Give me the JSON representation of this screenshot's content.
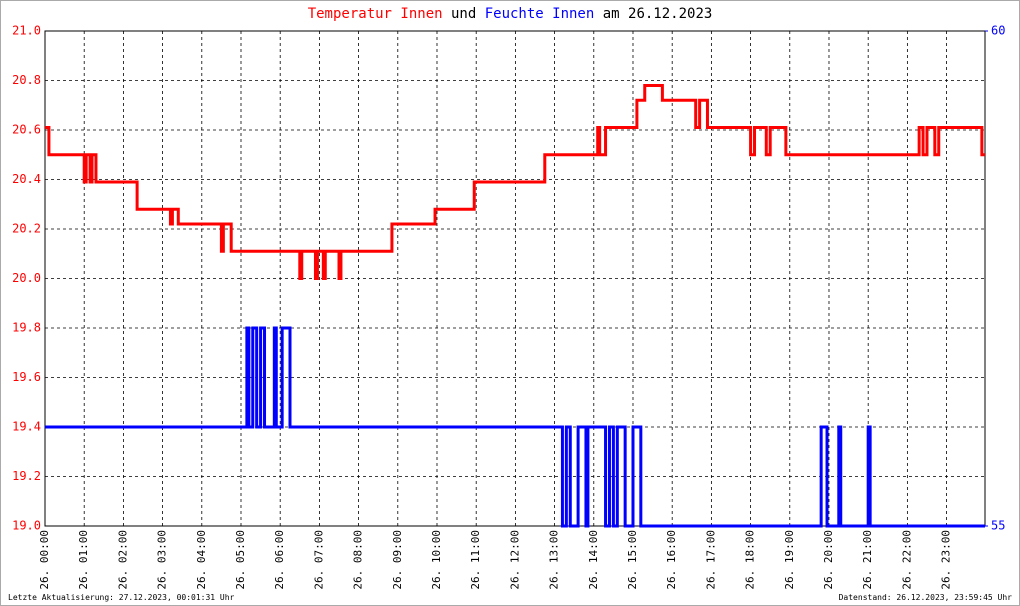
{
  "chart_data": {
    "type": "line",
    "title_joiner": "und",
    "title_date": "am 26.12.2023",
    "footer_left": "Letzte Aktualisierung: 27.12.2023, 00:01:31 Uhr",
    "footer_right": "Datenstand: 26.12.2023, 23:59:45 Uhr",
    "grid": true,
    "xlim": [
      0,
      23.98
    ],
    "xticks": [
      {
        "value": 0,
        "label": "26. 00:00"
      },
      {
        "value": 1,
        "label": "26. 01:00"
      },
      {
        "value": 2,
        "label": "26. 02:00"
      },
      {
        "value": 3,
        "label": "26. 03:00"
      },
      {
        "value": 4,
        "label": "26. 04:00"
      },
      {
        "value": 5,
        "label": "26. 05:00"
      },
      {
        "value": 6,
        "label": "26. 06:00"
      },
      {
        "value": 7,
        "label": "26. 07:00"
      },
      {
        "value": 8,
        "label": "26. 08:00"
      },
      {
        "value": 9,
        "label": "26. 09:00"
      },
      {
        "value": 10,
        "label": "26. 10:00"
      },
      {
        "value": 11,
        "label": "26. 11:00"
      },
      {
        "value": 12,
        "label": "26. 12:00"
      },
      {
        "value": 13,
        "label": "26. 13:00"
      },
      {
        "value": 14,
        "label": "26. 14:00"
      },
      {
        "value": 15,
        "label": "26. 15:00"
      },
      {
        "value": 16,
        "label": "26. 16:00"
      },
      {
        "value": 17,
        "label": "26. 17:00"
      },
      {
        "value": 18,
        "label": "26. 18:00"
      },
      {
        "value": 19,
        "label": "26. 19:00"
      },
      {
        "value": 20,
        "label": "26. 20:00"
      },
      {
        "value": 21,
        "label": "26. 21:00"
      },
      {
        "value": 22,
        "label": "26. 22:00"
      },
      {
        "value": 23,
        "label": "26. 23:00"
      }
    ],
    "ylim": [
      19.0,
      21.0
    ],
    "yticks": [
      {
        "value": 19.0,
        "label": "19.0"
      },
      19.2,
      19.4,
      19.6,
      19.8,
      {
        "value": 20.0,
        "label": "20.0"
      },
      20.2,
      20.4,
      20.6,
      20.8,
      {
        "value": 21.0,
        "label": "21.0"
      }
    ],
    "y_color": "#ff0000",
    "y2lim": [
      55,
      60
    ],
    "y2ticks": [
      55,
      60
    ],
    "y2_color": "#0000ff",
    "series": [
      {
        "name": "Temperatur Innen",
        "color": "#ff0000",
        "axis": "y",
        "x": [
          0,
          0.1,
          0.1,
          1.0,
          1.0,
          1.05,
          1.05,
          1.15,
          1.15,
          1.2,
          1.2,
          1.3,
          1.3,
          2.35,
          2.35,
          3.2,
          3.2,
          3.25,
          3.25,
          3.4,
          3.4,
          4.5,
          4.5,
          4.55,
          4.55,
          4.75,
          4.75,
          6.5,
          6.5,
          6.55,
          6.55,
          6.9,
          6.9,
          6.95,
          6.95,
          7.1,
          7.1,
          7.15,
          7.15,
          7.5,
          7.5,
          7.55,
          7.55,
          8.85,
          8.85,
          9.95,
          9.95,
          10.95,
          10.95,
          12.75,
          12.75,
          14.1,
          14.1,
          14.15,
          14.15,
          14.3,
          14.3,
          15.1,
          15.1,
          15.3,
          15.3,
          15.75,
          15.75,
          16.6,
          16.6,
          16.7,
          16.7,
          16.9,
          16.9,
          18.0,
          18.0,
          18.1,
          18.1,
          18.4,
          18.4,
          18.5,
          18.5,
          18.9,
          18.9,
          22.3,
          22.3,
          22.4,
          22.4,
          22.5,
          22.5,
          22.7,
          22.7,
          22.8,
          22.8,
          23.9,
          23.9,
          23.98
        ],
        "values": [
          20.61,
          20.61,
          20.5,
          20.5,
          20.39,
          20.39,
          20.5,
          20.5,
          20.39,
          20.39,
          20.5,
          20.5,
          20.39,
          20.39,
          20.28,
          20.28,
          20.22,
          20.22,
          20.28,
          20.28,
          20.22,
          20.22,
          20.11,
          20.11,
          20.22,
          20.22,
          20.11,
          20.11,
          20.0,
          20.0,
          20.11,
          20.11,
          20.0,
          20.0,
          20.11,
          20.11,
          20.0,
          20.0,
          20.11,
          20.11,
          20.0,
          20.0,
          20.11,
          20.11,
          20.22,
          20.22,
          20.28,
          20.28,
          20.39,
          20.39,
          20.5,
          20.5,
          20.61,
          20.61,
          20.5,
          20.5,
          20.61,
          20.61,
          20.72,
          20.72,
          20.78,
          20.78,
          20.72,
          20.72,
          20.61,
          20.61,
          20.72,
          20.72,
          20.61,
          20.61,
          20.5,
          20.5,
          20.61,
          20.61,
          20.5,
          20.5,
          20.61,
          20.61,
          20.5,
          20.5,
          20.61,
          20.61,
          20.5,
          20.5,
          20.61,
          20.61,
          20.5,
          20.5,
          20.61,
          20.61,
          20.5,
          20.5
        ]
      },
      {
        "name": "Feuchte Innen",
        "color": "#0000ff",
        "axis": "y2",
        "x": [
          0,
          5.15,
          5.15,
          5.2,
          5.2,
          5.3,
          5.3,
          5.4,
          5.4,
          5.5,
          5.5,
          5.6,
          5.6,
          5.85,
          5.85,
          5.9,
          5.9,
          6.05,
          6.05,
          6.25,
          6.25,
          13.2,
          13.2,
          13.3,
          13.3,
          13.4,
          13.4,
          13.6,
          13.6,
          13.8,
          13.8,
          13.85,
          13.85,
          14.3,
          14.3,
          14.4,
          14.4,
          14.5,
          14.5,
          14.6,
          14.6,
          14.8,
          14.8,
          15.0,
          15.0,
          15.2,
          15.2,
          19.8,
          19.8,
          19.95,
          19.95,
          20.25,
          20.25,
          20.3,
          20.3,
          21.0,
          21.0,
          21.05,
          21.05,
          23.98
        ],
        "values": [
          56,
          56,
          57,
          57,
          56,
          56,
          57,
          57,
          56,
          56,
          57,
          57,
          56,
          56,
          57,
          57,
          56,
          56,
          57,
          57,
          56,
          56,
          55,
          55,
          56,
          56,
          55,
          55,
          56,
          56,
          55,
          55,
          56,
          56,
          55,
          55,
          56,
          56,
          55,
          55,
          56,
          56,
          55,
          55,
          56,
          56,
          55,
          55,
          56,
          56,
          55,
          55,
          56,
          56,
          55,
          55,
          56,
          56,
          55,
          55
        ]
      }
    ]
  }
}
